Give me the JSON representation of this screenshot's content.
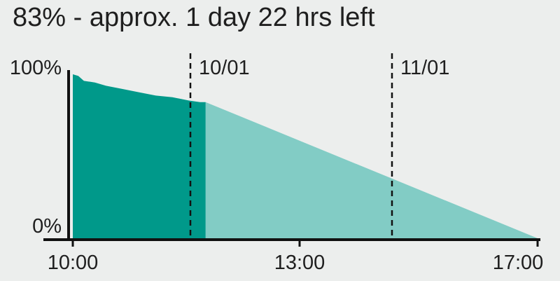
{
  "battery": {
    "status_text": "83% - approx. 1 day 22 hrs left",
    "level_percent": 83
  },
  "colors": {
    "background": "#eceeed",
    "history_fill": "#00998a",
    "prediction_fill": "#82ccc5",
    "axis": "#111111",
    "text": "#1f1f1f"
  },
  "chart_data": {
    "type": "area",
    "title": "",
    "xlabel": "",
    "ylabel": "",
    "y_tick_labels": [
      "100%",
      "0%"
    ],
    "x_tick_labels": [
      "10:00",
      "13:00",
      "17:00"
    ],
    "date_markers": [
      "10/01",
      "11/01"
    ],
    "ylim": [
      0,
      100
    ],
    "series": [
      {
        "kind": "history",
        "x": [
          "10:00",
          "10:05",
          "10:10",
          "10:20",
          "10:30",
          "10:45",
          "11:00",
          "11:15",
          "11:30",
          "11:45",
          "11:55",
          "12:00"
        ],
        "y": [
          100,
          99,
          96,
          95,
          93,
          91,
          89,
          87,
          86,
          84,
          83,
          83
        ]
      },
      {
        "kind": "prediction",
        "x": [
          "12:00",
          "17:00"
        ],
        "y": [
          83,
          0
        ]
      }
    ],
    "grid": false
  }
}
